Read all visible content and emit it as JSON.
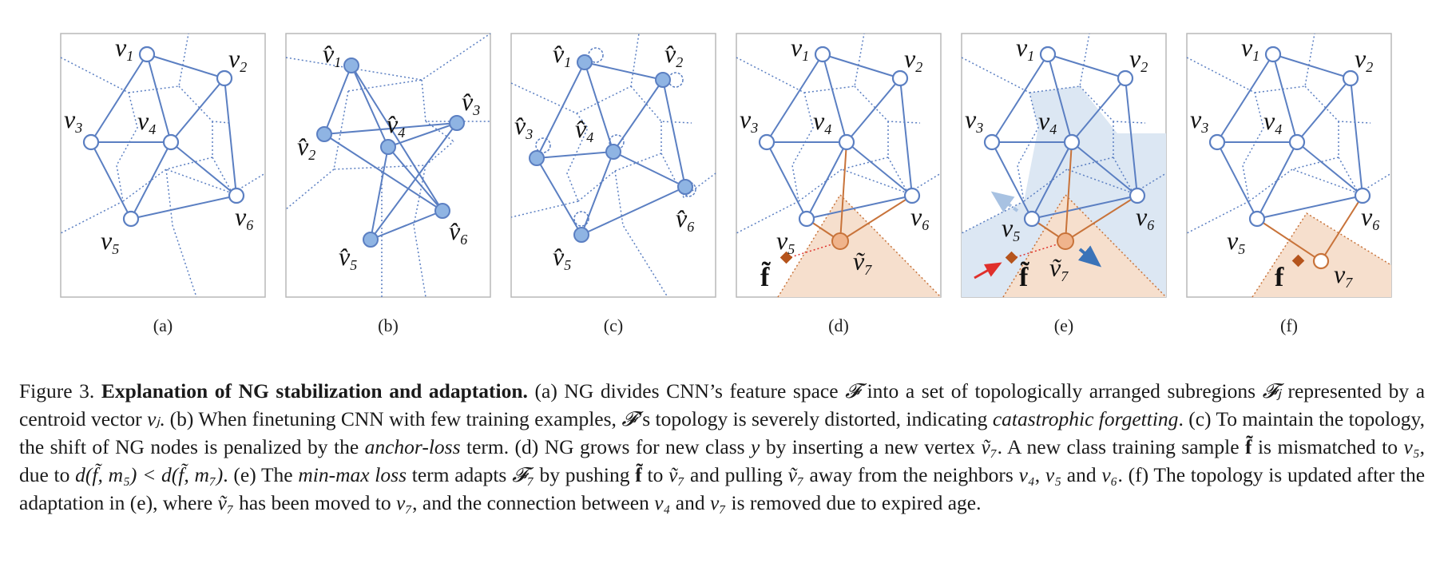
{
  "figure": {
    "panels": [
      {
        "label": "(a)"
      },
      {
        "label": "(b)"
      },
      {
        "label": "(c)"
      },
      {
        "label": "(d)"
      },
      {
        "label": "(e)"
      },
      {
        "label": "(f)"
      }
    ],
    "node_labels": {
      "v1": "v",
      "s1": "1",
      "s2": "2",
      "s3": "3",
      "s4": "4",
      "s5": "5",
      "s6": "6",
      "s7": "7",
      "vhat": "v̂",
      "vtilde": "ṽ",
      "ftilde": "f̃",
      "fbold": "f"
    },
    "colors": {
      "edge": "#5b7fc2",
      "voronoi": "#5b7fc2",
      "node_fill": "#8fb4e3",
      "new_edge": "#c8733a",
      "new_region": "#f6dfcd",
      "region_e": "#dce7f3",
      "sample": "#b5541c",
      "red_arrow": "#e0302b",
      "blue_arrow": "#3a73b8",
      "frame": "#b9b9b9"
    }
  },
  "caption": {
    "fig_num": "Figure 3.",
    "title": "Explanation of NG stabilization and adaptation.",
    "t1": " (a) NG divides CNN’s feature space ",
    "F": "𝓕",
    "t2": " into a set of topologically arranged subregions ",
    "Fj": "𝓕ⱼ",
    "t3": " represented by a centroid vector ",
    "vj": "vⱼ",
    "t4": ". (b) When finetuning CNN with few training examples, ",
    "t5": "’s topology is severely distorted, indicating ",
    "cf": "catastrophic forgetting",
    "t6": ". (c) To maintain the topology, the shift of NG nodes is penalized by the ",
    "al": "anchor-loss",
    "t7": " term. (d) NG grows for new class ",
    "y": "y",
    "t8": " by inserting a new vertex ",
    "v7t": "ṽ₇",
    "t9": ". A new class training sample ",
    "ft": "f̃",
    "t10": " is mismatched to ",
    "v5": "v₅",
    "t11": ", due to ",
    "ineq": "d(f̃, m₅) < d(f̃, m₇)",
    "t12": ". (e) The ",
    "mml": "min-max loss",
    "t13": " term adapts ",
    "F7": "𝓕₇",
    "t14": " by pushing ",
    "t15": " to ",
    "t16": " and pulling ",
    "t17": " away from the neighbors ",
    "v4": "v₄",
    "c1": ", ",
    "t18": " and ",
    "v6": "v₆",
    "t19": ". (f) The topology is updated after the adaptation in (e), where ",
    "t20": " has been moved to ",
    "v7": "v₇",
    "t21": ", and the connection between ",
    "t22": " and ",
    "t23": " is removed due to expired age."
  }
}
